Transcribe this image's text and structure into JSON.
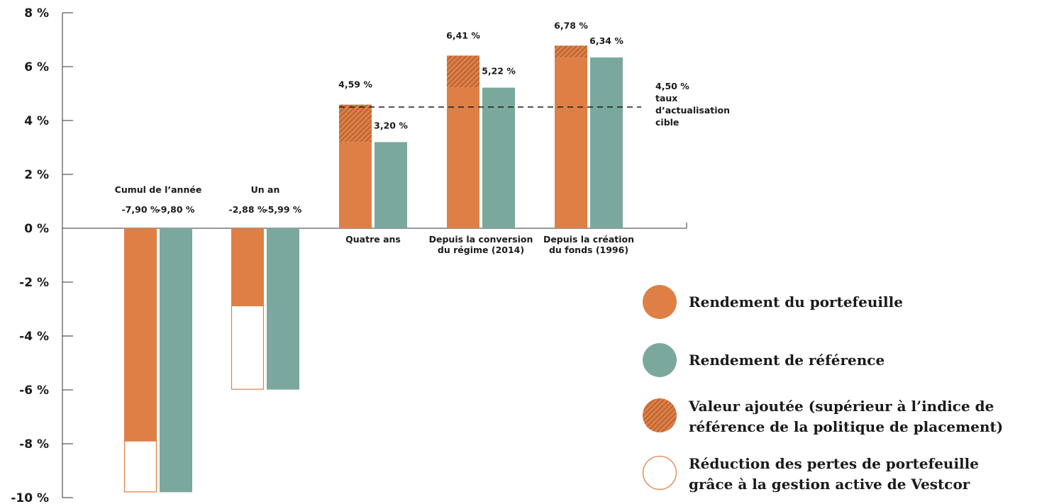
{
  "chart_data": {
    "type": "bar",
    "categories": [
      [
        "Cumul de l’année"
      ],
      [
        "Un an"
      ],
      [
        "Quatre ans"
      ],
      [
        "Depuis la conversion",
        "du régime (2014)"
      ],
      [
        "Depuis la création",
        "du fonds (1996)"
      ]
    ],
    "series": [
      {
        "name": "Rendement du portefeuille",
        "values": [
          -7.9,
          -2.88,
          4.59,
          6.41,
          6.78
        ],
        "labels": [
          "-7,90 %",
          "-2,88 %",
          "4,59 %",
          "6,41 %",
          "6,78 %"
        ]
      },
      {
        "name": "Rendement de référence",
        "values": [
          -9.8,
          -5.99,
          3.2,
          5.22,
          6.34
        ],
        "labels": [
          "-9,80 %",
          "-5,99 %",
          "3,20 %",
          "5,22 %",
          "6,34 %"
        ]
      }
    ],
    "ylim": [
      -10,
      8
    ],
    "yticks": [
      8,
      6,
      4,
      2,
      0,
      -2,
      -4,
      -6,
      -8,
      -10
    ],
    "ytick_labels": [
      "8 %",
      "6 %",
      "4 %",
      "2 %",
      "0 %",
      "-2 %",
      "-4 %",
      "-6 %",
      "-8 %",
      "-10 %"
    ],
    "reference_line": {
      "value": 4.5,
      "label_lines": [
        "4,50 %",
        "taux",
        "d’actualisation",
        "cible"
      ]
    },
    "legend": [
      {
        "key": "portfolio",
        "label_lines": [
          "Rendement du portefeuille"
        ]
      },
      {
        "key": "benchmark",
        "label_lines": [
          "Rendement de référence"
        ]
      },
      {
        "key": "value_added",
        "label_lines": [
          "Valeur ajoutée (supérieur à l’indice de",
          "référence de la politique de placement)"
        ]
      },
      {
        "key": "loss_reduction",
        "label_lines": [
          "Réduction des pertes de portefeuille",
          "grâce à la gestion active de Vestcor"
        ]
      }
    ],
    "legend_position": "bottom-right",
    "colors": {
      "portfolio": "#de7f46",
      "benchmark": "#7aa89d",
      "hatch": "#a8592b",
      "axis": "#333333"
    }
  }
}
